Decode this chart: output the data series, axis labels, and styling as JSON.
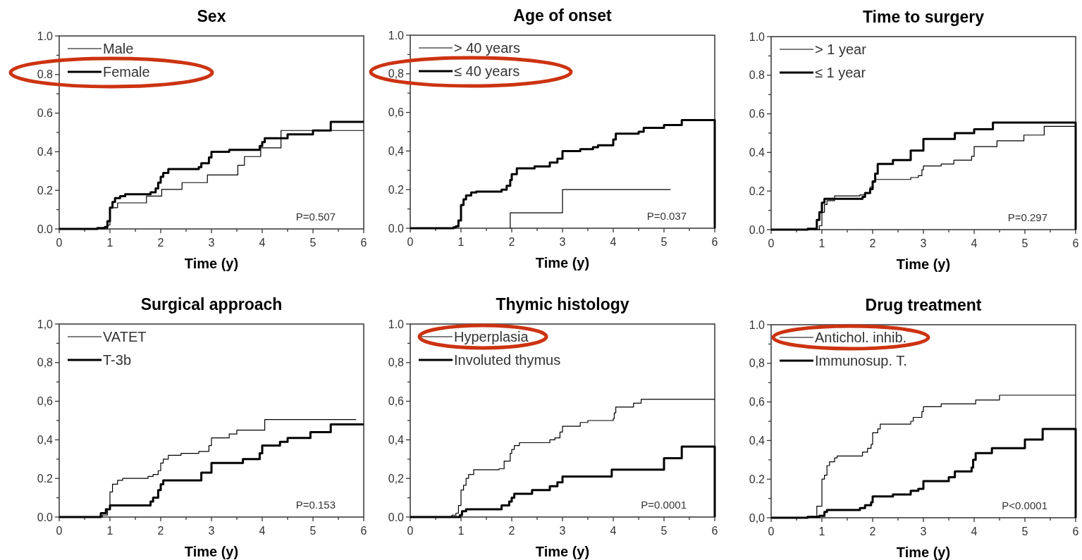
{
  "chart_data": [
    {
      "type": "step",
      "title": "Sex",
      "xlabel": "Time (y)",
      "xlim": [
        0,
        6
      ],
      "ylim": [
        0,
        1
      ],
      "legend": "top left",
      "grid": false,
      "marker": "none",
      "line_style": "solid",
      "xticks": [
        0,
        {
          "value": 0.5,
          "label": null
        },
        1,
        {
          "value": 1.5,
          "label": null
        },
        2,
        {
          "value": 2.5,
          "label": null
        },
        3,
        {
          "value": 3.5,
          "label": null
        },
        4,
        {
          "value": 4.5,
          "label": null
        },
        5,
        {
          "value": 5.5,
          "label": null
        },
        6
      ],
      "yticks": [
        {
          "value": 0,
          "label": "0.0"
        },
        {
          "value": 0.1,
          "label": null
        },
        {
          "value": 0.2,
          "label": "0.2"
        },
        {
          "value": 0.3,
          "label": null
        },
        {
          "value": 0.4,
          "label": "0.4"
        },
        {
          "value": 0.5,
          "label": null
        },
        {
          "value": 0.6,
          "label": "0.6"
        },
        {
          "value": 0.7,
          "label": null
        },
        {
          "value": 0.8,
          "label": "0.8"
        },
        {
          "value": 0.9,
          "label": null
        },
        {
          "value": 1,
          "label": "1.0"
        }
      ],
      "annotations": [
        "P=0.507"
      ],
      "series": [
        {
          "name": "Male",
          "color": "#000000",
          "x": [
            0,
            0.95,
            1.0,
            1.15,
            1.72,
            2.02,
            2.42,
            2.92,
            3.52,
            3.65,
            3.97,
            4.37,
            6
          ],
          "values": [
            0,
            0.02,
            0.11,
            0.135,
            0.17,
            0.205,
            0.24,
            0.28,
            0.33,
            0.375,
            0.42,
            0.51,
            0.51
          ]
        },
        {
          "name": "Female",
          "color": "#000000",
          "x": [
            0,
            0.75,
            0.9,
            0.95,
            1.0,
            1.05,
            1.1,
            1.2,
            1.3,
            1.8,
            1.9,
            1.95,
            2.0,
            2.05,
            2.15,
            2.75,
            2.8,
            2.95,
            3.0,
            3.35,
            3.95,
            4.0,
            4.05,
            4.5,
            5.0,
            5.35,
            6
          ],
          "values": [
            0,
            0.005,
            0.01,
            0.04,
            0.11,
            0.14,
            0.16,
            0.17,
            0.18,
            0.19,
            0.21,
            0.24,
            0.27,
            0.29,
            0.31,
            0.32,
            0.34,
            0.37,
            0.4,
            0.41,
            0.43,
            0.45,
            0.47,
            0.49,
            0.51,
            0.555,
            0.555
          ]
        }
      ]
    },
    {
      "type": "step",
      "title": "Age of onset",
      "xlabel": "Time (y)",
      "xlim": [
        0,
        6
      ],
      "ylim": [
        0,
        1
      ],
      "legend": "top left",
      "grid": false,
      "marker": "none",
      "line_style": "solid",
      "xticks": [
        0,
        {
          "value": 0.5,
          "label": null
        },
        1,
        {
          "value": 1.5,
          "label": null
        },
        2,
        {
          "value": 2.5,
          "label": null
        },
        3,
        {
          "value": 3.5,
          "label": null
        },
        4,
        {
          "value": 4.5,
          "label": null
        },
        5,
        {
          "value": 5.5,
          "label": null
        },
        6
      ],
      "yticks": [
        {
          "value": 0,
          "label": "0.0"
        },
        {
          "value": 0.1,
          "label": null
        },
        {
          "value": 0.2,
          "label": "0.2"
        },
        {
          "value": 0.3,
          "label": null
        },
        {
          "value": 0.4,
          "label": "0,4"
        },
        {
          "value": 0.5,
          "label": null
        },
        {
          "value": 0.6,
          "label": "0,6"
        },
        {
          "value": 0.7,
          "label": null
        },
        {
          "value": 0.8,
          "label": "0,8"
        },
        {
          "value": 0.9,
          "label": null
        },
        {
          "value": 1,
          "label": "1.0"
        }
      ],
      "annotations": [
        "P=0.037"
      ],
      "series": [
        {
          "name": "> 40 years",
          "color": "#000000",
          "x": [
            1.97,
            1.97,
            3.0,
            5.13
          ],
          "values": [
            0,
            0.08,
            0.2,
            0.2
          ]
        },
        {
          "name": "≤ 40 years",
          "color": "#000000",
          "x": [
            0,
            0.85,
            0.9,
            0.95,
            1.0,
            1.05,
            1.1,
            1.2,
            1.3,
            1.8,
            1.9,
            1.97,
            2.0,
            2.1,
            2.45,
            2.75,
            2.9,
            3.0,
            3.35,
            3.6,
            3.7,
            4.0,
            4.05,
            4.5,
            4.6,
            5.0,
            5.35,
            6,
            6
          ],
          "values": [
            0,
            0.005,
            0.01,
            0.04,
            0.12,
            0.15,
            0.17,
            0.185,
            0.19,
            0.2,
            0.22,
            0.25,
            0.28,
            0.31,
            0.32,
            0.34,
            0.36,
            0.4,
            0.41,
            0.42,
            0.43,
            0.46,
            0.49,
            0.5,
            0.52,
            0.535,
            0.56,
            0.56,
            0
          ]
        }
      ]
    },
    {
      "type": "step",
      "title": "Time to surgery",
      "xlabel": "Time (y)",
      "xlim": [
        0,
        6
      ],
      "ylim": [
        0,
        1
      ],
      "legend": "top left",
      "grid": false,
      "marker": "none",
      "line_style": "solid",
      "xticks": [
        0,
        {
          "value": 0.5,
          "label": null
        },
        1,
        {
          "value": 1.5,
          "label": null
        },
        2,
        {
          "value": 2.5,
          "label": null
        },
        3,
        {
          "value": 3.5,
          "label": null
        },
        4,
        {
          "value": 4.5,
          "label": null
        },
        5,
        {
          "value": 5.5,
          "label": null
        },
        6
      ],
      "yticks": [
        {
          "value": 0,
          "label": "0.0"
        },
        {
          "value": 0.1,
          "label": null
        },
        {
          "value": 0.2,
          "label": "0.2"
        },
        {
          "value": 0.3,
          "label": null
        },
        {
          "value": 0.4,
          "label": "0.4"
        },
        {
          "value": 0.5,
          "label": null
        },
        {
          "value": 0.6,
          "label": "0.6"
        },
        {
          "value": 0.7,
          "label": null
        },
        {
          "value": 0.8,
          "label": "0.8"
        },
        {
          "value": 0.9,
          "label": null
        },
        {
          "value": 1,
          "label": "1.0"
        }
      ],
      "annotations": [
        "P=0.297"
      ],
      "series": [
        {
          "name": "> 1 year",
          "color": "#000000",
          "x": [
            0,
            0.95,
            1.0,
            1.05,
            1.1,
            1.25,
            1.75,
            1.85,
            1.95,
            2.0,
            2.05,
            2.75,
            2.9,
            2.97,
            3.0,
            3.35,
            3.6,
            3.95,
            4.0,
            4.45,
            4.98,
            5.38,
            6
          ],
          "values": [
            0,
            0.02,
            0.09,
            0.13,
            0.15,
            0.175,
            0.18,
            0.19,
            0.22,
            0.245,
            0.26,
            0.27,
            0.28,
            0.31,
            0.33,
            0.34,
            0.36,
            0.38,
            0.43,
            0.46,
            0.49,
            0.535,
            0.535
          ]
        },
        {
          "name": "≤ 1 year",
          "color": "#000000",
          "x": [
            0,
            0.72,
            0.9,
            0.95,
            1.0,
            1.05,
            1.8,
            1.85,
            1.95,
            2.0,
            2.05,
            2.1,
            2.4,
            2.75,
            3.0,
            3.62,
            4.0,
            4.37,
            6,
            6
          ],
          "values": [
            0,
            0.005,
            0.05,
            0.09,
            0.14,
            0.16,
            0.17,
            0.19,
            0.21,
            0.25,
            0.29,
            0.34,
            0.36,
            0.41,
            0.47,
            0.5,
            0.52,
            0.555,
            0.555,
            0
          ]
        }
      ]
    },
    {
      "type": "step",
      "title": "Surgical approach",
      "xlabel": "Time (y)",
      "xlim": [
        0,
        6
      ],
      "ylim": [
        0,
        1
      ],
      "legend": "top left",
      "grid": false,
      "marker": "none",
      "line_style": "solid",
      "xticks": [
        0,
        {
          "value": 0.5,
          "label": null
        },
        1,
        {
          "value": 1.5,
          "label": null
        },
        2,
        {
          "value": 2.5,
          "label": null
        },
        3,
        {
          "value": 3.5,
          "label": null
        },
        4,
        {
          "value": 4.5,
          "label": null
        },
        5,
        {
          "value": 5.5,
          "label": null
        },
        6
      ],
      "yticks": [
        {
          "value": 0,
          "label": "0.0"
        },
        {
          "value": 0.1,
          "label": null
        },
        {
          "value": 0.2,
          "label": "0.2"
        },
        {
          "value": 0.3,
          "label": null
        },
        {
          "value": 0.4,
          "label": "0,4"
        },
        {
          "value": 0.5,
          "label": null
        },
        {
          "value": 0.6,
          "label": "0,6"
        },
        {
          "value": 0.7,
          "label": null
        },
        {
          "value": 0.8,
          "label": "0,8"
        },
        {
          "value": 0.9,
          "label": null
        },
        {
          "value": 1,
          "label": "1,0"
        }
      ],
      "annotations": [
        "P=0.153"
      ],
      "series": [
        {
          "name": "VATET",
          "color": "#000000",
          "x": [
            0,
            0.85,
            0.95,
            1.0,
            1.05,
            1.15,
            1.25,
            1.75,
            1.85,
            1.95,
            2.0,
            2.05,
            2.15,
            2.4,
            2.75,
            2.95,
            3.0,
            3.35,
            3.5,
            4.05,
            5.85
          ],
          "values": [
            0,
            0.01,
            0.04,
            0.13,
            0.17,
            0.19,
            0.2,
            0.21,
            0.22,
            0.24,
            0.28,
            0.3,
            0.32,
            0.33,
            0.34,
            0.37,
            0.41,
            0.43,
            0.45,
            0.505,
            0.505
          ]
        },
        {
          "name": "T-3b",
          "color": "#000000",
          "x": [
            0,
            0.82,
            0.92,
            1.0,
            1.8,
            1.85,
            1.95,
            2.0,
            2.05,
            2.8,
            3.0,
            3.62,
            3.95,
            4.0,
            4.35,
            4.5,
            4.95,
            5.35,
            6
          ],
          "values": [
            0,
            0.02,
            0.04,
            0.06,
            0.08,
            0.1,
            0.14,
            0.17,
            0.19,
            0.23,
            0.28,
            0.3,
            0.33,
            0.37,
            0.39,
            0.41,
            0.44,
            0.48,
            0.48
          ]
        }
      ]
    },
    {
      "type": "step",
      "title": "Thymic histology",
      "xlabel": "Time (y)",
      "xlim": [
        0,
        6
      ],
      "ylim": [
        0,
        1
      ],
      "legend": "top left",
      "grid": false,
      "marker": "none",
      "line_style": "solid",
      "xticks": [
        0,
        {
          "value": 0.5,
          "label": null
        },
        1,
        {
          "value": 1.5,
          "label": null
        },
        2,
        {
          "value": 2.5,
          "label": null
        },
        3,
        {
          "value": 3.5,
          "label": null
        },
        4,
        {
          "value": 4.5,
          "label": null
        },
        5,
        {
          "value": 5.5,
          "label": null
        },
        6
      ],
      "yticks": [
        {
          "value": 0,
          "label": "0.0"
        },
        {
          "value": 0.1,
          "label": null
        },
        {
          "value": 0.2,
          "label": "0,2"
        },
        {
          "value": 0.3,
          "label": null
        },
        {
          "value": 0.4,
          "label": "0,4"
        },
        {
          "value": 0.5,
          "label": null
        },
        {
          "value": 0.6,
          "label": "0,6"
        },
        {
          "value": 0.7,
          "label": null
        },
        {
          "value": 0.8,
          "label": "0,8"
        },
        {
          "value": 0.9,
          "label": null
        },
        {
          "value": 1,
          "label": "1.0"
        }
      ],
      "annotations": [
        "P=0.0001"
      ],
      "series": [
        {
          "name": "Hyperplasia",
          "color": "#000000",
          "x": [
            0,
            0.82,
            0.9,
            0.95,
            1.0,
            1.05,
            1.1,
            1.15,
            1.25,
            1.75,
            1.85,
            1.97,
            2.0,
            2.05,
            2.15,
            2.75,
            2.85,
            2.95,
            3.0,
            3.35,
            3.5,
            4.0,
            4.02,
            4.05,
            4.4,
            4.55,
            6
          ],
          "values": [
            0,
            0.01,
            0.02,
            0.06,
            0.14,
            0.165,
            0.2,
            0.22,
            0.245,
            0.25,
            0.29,
            0.33,
            0.35,
            0.37,
            0.385,
            0.4,
            0.41,
            0.44,
            0.47,
            0.49,
            0.5,
            0.51,
            0.54,
            0.57,
            0.59,
            0.61,
            0.61
          ]
        },
        {
          "name": "Involuted thymus",
          "color": "#000000",
          "x": [
            0,
            0.98,
            1.02,
            1.1,
            1.8,
            1.95,
            2.0,
            2.05,
            2.4,
            2.75,
            2.9,
            3.0,
            3.97,
            5.0,
            5.35,
            6,
            6
          ],
          "values": [
            0,
            0.01,
            0.03,
            0.04,
            0.06,
            0.08,
            0.1,
            0.12,
            0.14,
            0.16,
            0.18,
            0.21,
            0.245,
            0.305,
            0.365,
            0.365,
            0
          ]
        }
      ]
    },
    {
      "type": "step",
      "title": "Drug treatment",
      "xlabel": "Time (y)",
      "xlim": [
        0,
        6
      ],
      "ylim": [
        0,
        1
      ],
      "legend": "top left",
      "grid": false,
      "marker": "none",
      "line_style": "solid",
      "xticks": [
        0,
        {
          "value": 0.5,
          "label": null
        },
        1,
        {
          "value": 1.5,
          "label": null
        },
        2,
        {
          "value": 2.5,
          "label": null
        },
        3,
        {
          "value": 3.5,
          "label": null
        },
        4,
        {
          "value": 4.5,
          "label": null
        },
        5,
        {
          "value": 5.5,
          "label": null
        },
        6
      ],
      "yticks": [
        {
          "value": 0,
          "label": "0,0"
        },
        {
          "value": 0.1,
          "label": null
        },
        {
          "value": 0.2,
          "label": "0.2"
        },
        {
          "value": 0.3,
          "label": null
        },
        {
          "value": 0.4,
          "label": "0,4"
        },
        {
          "value": 0.5,
          "label": null
        },
        {
          "value": 0.6,
          "label": "0,6"
        },
        {
          "value": 0.7,
          "label": null
        },
        {
          "value": 0.8,
          "label": "0,8"
        },
        {
          "value": 0.9,
          "label": null
        },
        {
          "value": 1,
          "label": "1.0"
        }
      ],
      "annotations": [
        "P<0.0001"
      ],
      "series": [
        {
          "name": "Antichol. inhib.",
          "color": "#000000",
          "x": [
            0,
            0.72,
            0.9,
            1.0,
            1.05,
            1.1,
            1.15,
            1.25,
            1.3,
            1.8,
            1.9,
            1.97,
            2.0,
            2.1,
            2.15,
            2.75,
            2.8,
            2.97,
            3.0,
            3.35,
            4.03,
            4.5,
            6
          ],
          "values": [
            0,
            0.005,
            0.06,
            0.2,
            0.22,
            0.27,
            0.29,
            0.31,
            0.32,
            0.34,
            0.36,
            0.38,
            0.44,
            0.46,
            0.485,
            0.5,
            0.52,
            0.55,
            0.575,
            0.59,
            0.61,
            0.635,
            0.635
          ]
        },
        {
          "name": "Immunosup. T.",
          "color": "#000000",
          "x": [
            0,
            0.72,
            0.95,
            1.05,
            1.1,
            1.75,
            1.85,
            1.97,
            2.0,
            2.4,
            2.75,
            2.9,
            3.0,
            3.5,
            3.62,
            3.95,
            3.98,
            4.03,
            4.35,
            5.0,
            5.35,
            6,
            6
          ],
          "values": [
            0,
            0.005,
            0.01,
            0.03,
            0.04,
            0.05,
            0.065,
            0.08,
            0.11,
            0.12,
            0.14,
            0.15,
            0.19,
            0.21,
            0.24,
            0.26,
            0.3,
            0.335,
            0.36,
            0.405,
            0.46,
            0.46,
            0
          ]
        }
      ]
    }
  ]
}
